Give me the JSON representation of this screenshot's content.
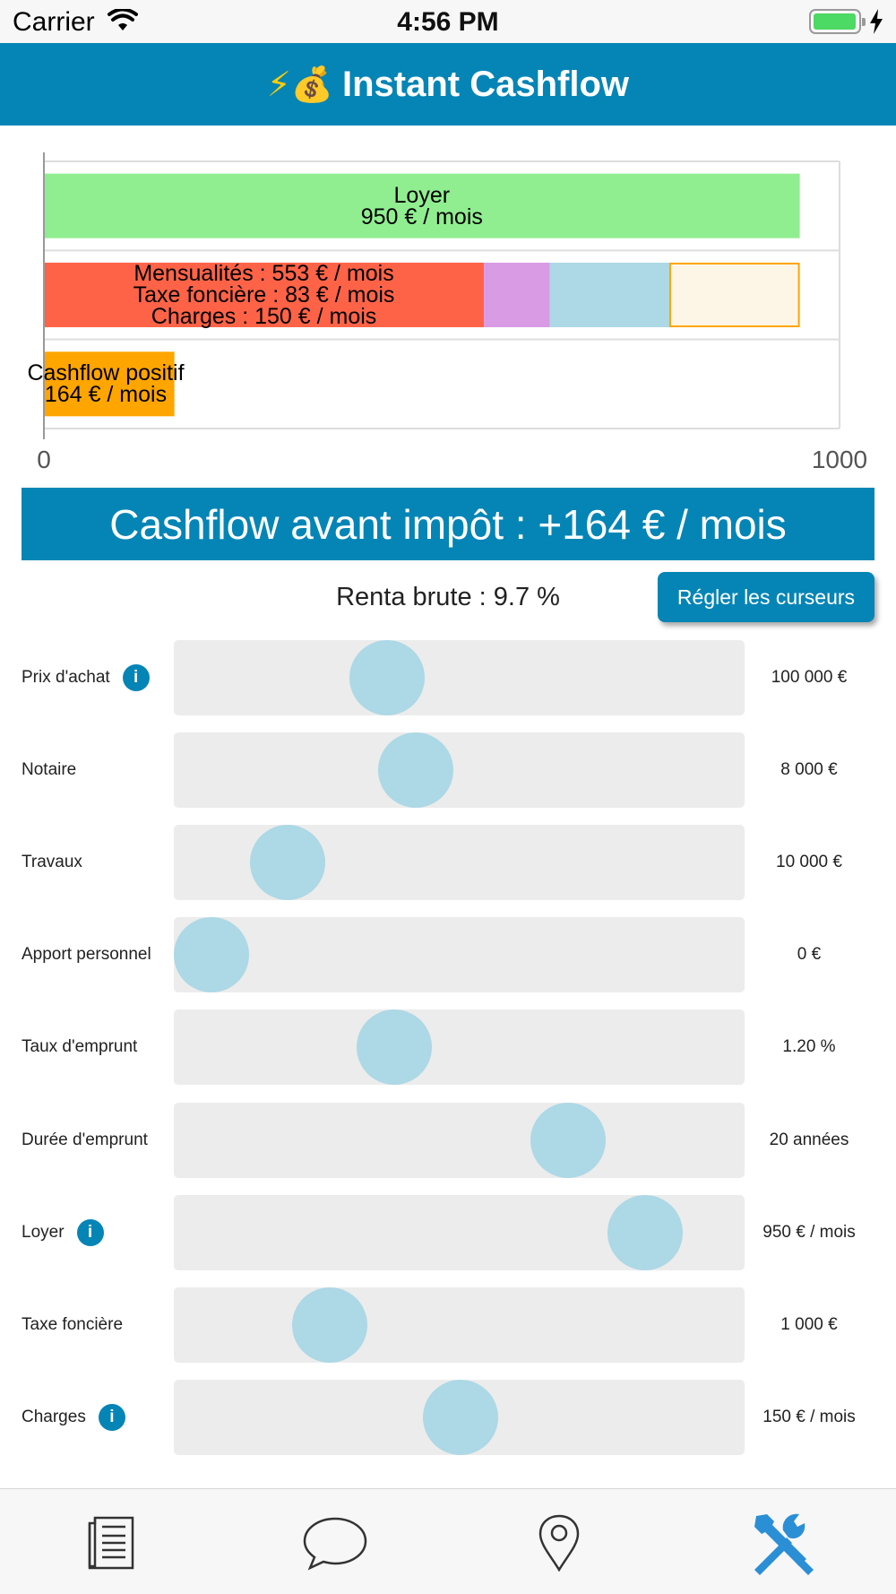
{
  "status_bar": {
    "carrier": "Carrier",
    "time": "4:56 PM"
  },
  "header": {
    "emoji": "⚡💰",
    "title": "Instant Cashflow"
  },
  "chart_data": {
    "type": "bar",
    "orientation": "horizontal",
    "stacked": true,
    "xlim": [
      0,
      1000
    ],
    "x_ticks": [
      "0",
      "1000"
    ],
    "grid": true,
    "bars": [
      {
        "label_lines": [
          "Loyer",
          "950 € / mois"
        ],
        "segments": [
          {
            "name": "Loyer",
            "value": 950,
            "color": "#90ee90"
          }
        ]
      },
      {
        "label_lines": [
          "Mensualités : 553 € / mois",
          "Taxe foncière : 83 € / mois",
          "Charges : 150 € / mois"
        ],
        "segments": [
          {
            "name": "Mensualités",
            "value": 553,
            "color": "#ff6347"
          },
          {
            "name": "Taxe foncière",
            "value": 83,
            "color": "#d89be4"
          },
          {
            "name": "Charges",
            "value": 150,
            "color": "#add8e6"
          },
          {
            "name": "Cashflow",
            "value": 164,
            "color": "#fdf5e6",
            "stroke": "#ffa500"
          }
        ]
      },
      {
        "label_lines": [
          "Cashflow positif",
          "164 € / mois"
        ],
        "segments": [
          {
            "name": "Cashflow positif",
            "value": 164,
            "color": "#ffa500"
          }
        ]
      }
    ]
  },
  "banner": {
    "text": "Cashflow avant impôt : +164 € / mois"
  },
  "renta": {
    "text": "Renta brute : 9.7 %"
  },
  "regler_button": {
    "label": "Régler les curseurs"
  },
  "sliders": [
    {
      "label": "Prix d'achat",
      "info": true,
      "value": "100 000 €",
      "level": 0.355
    },
    {
      "label": "Notaire",
      "info": false,
      "value": "8 000 €",
      "level": 0.413
    },
    {
      "label": "Travaux",
      "info": false,
      "value": "10 000 €",
      "level": 0.153
    },
    {
      "label": "Apport personnel",
      "info": false,
      "value": "0 €",
      "level": 0.0
    },
    {
      "label": "Taux d'emprunt",
      "info": false,
      "value": "1.20 %",
      "level": 0.369
    },
    {
      "label": "Durée d'emprunt",
      "info": false,
      "value": "20 années",
      "level": 0.719
    },
    {
      "label": "Loyer",
      "info": true,
      "value": "950 € / mois",
      "level": 0.875
    },
    {
      "label": "Taxe foncière",
      "info": false,
      "value": "1 000 €",
      "level": 0.239
    },
    {
      "label": "Charges",
      "info": true,
      "value": "150 € / mois",
      "level": 0.503
    }
  ],
  "info_glyph": "i",
  "tabs": [
    {
      "icon": "document-icon",
      "active": false
    },
    {
      "icon": "chat-bubble-icon",
      "active": false
    },
    {
      "icon": "location-pin-icon",
      "active": false
    },
    {
      "icon": "tools-icon",
      "active": true
    }
  ],
  "colors": {
    "accent": "#0585b6",
    "track": "#ececec",
    "knob": "#add8e6"
  }
}
